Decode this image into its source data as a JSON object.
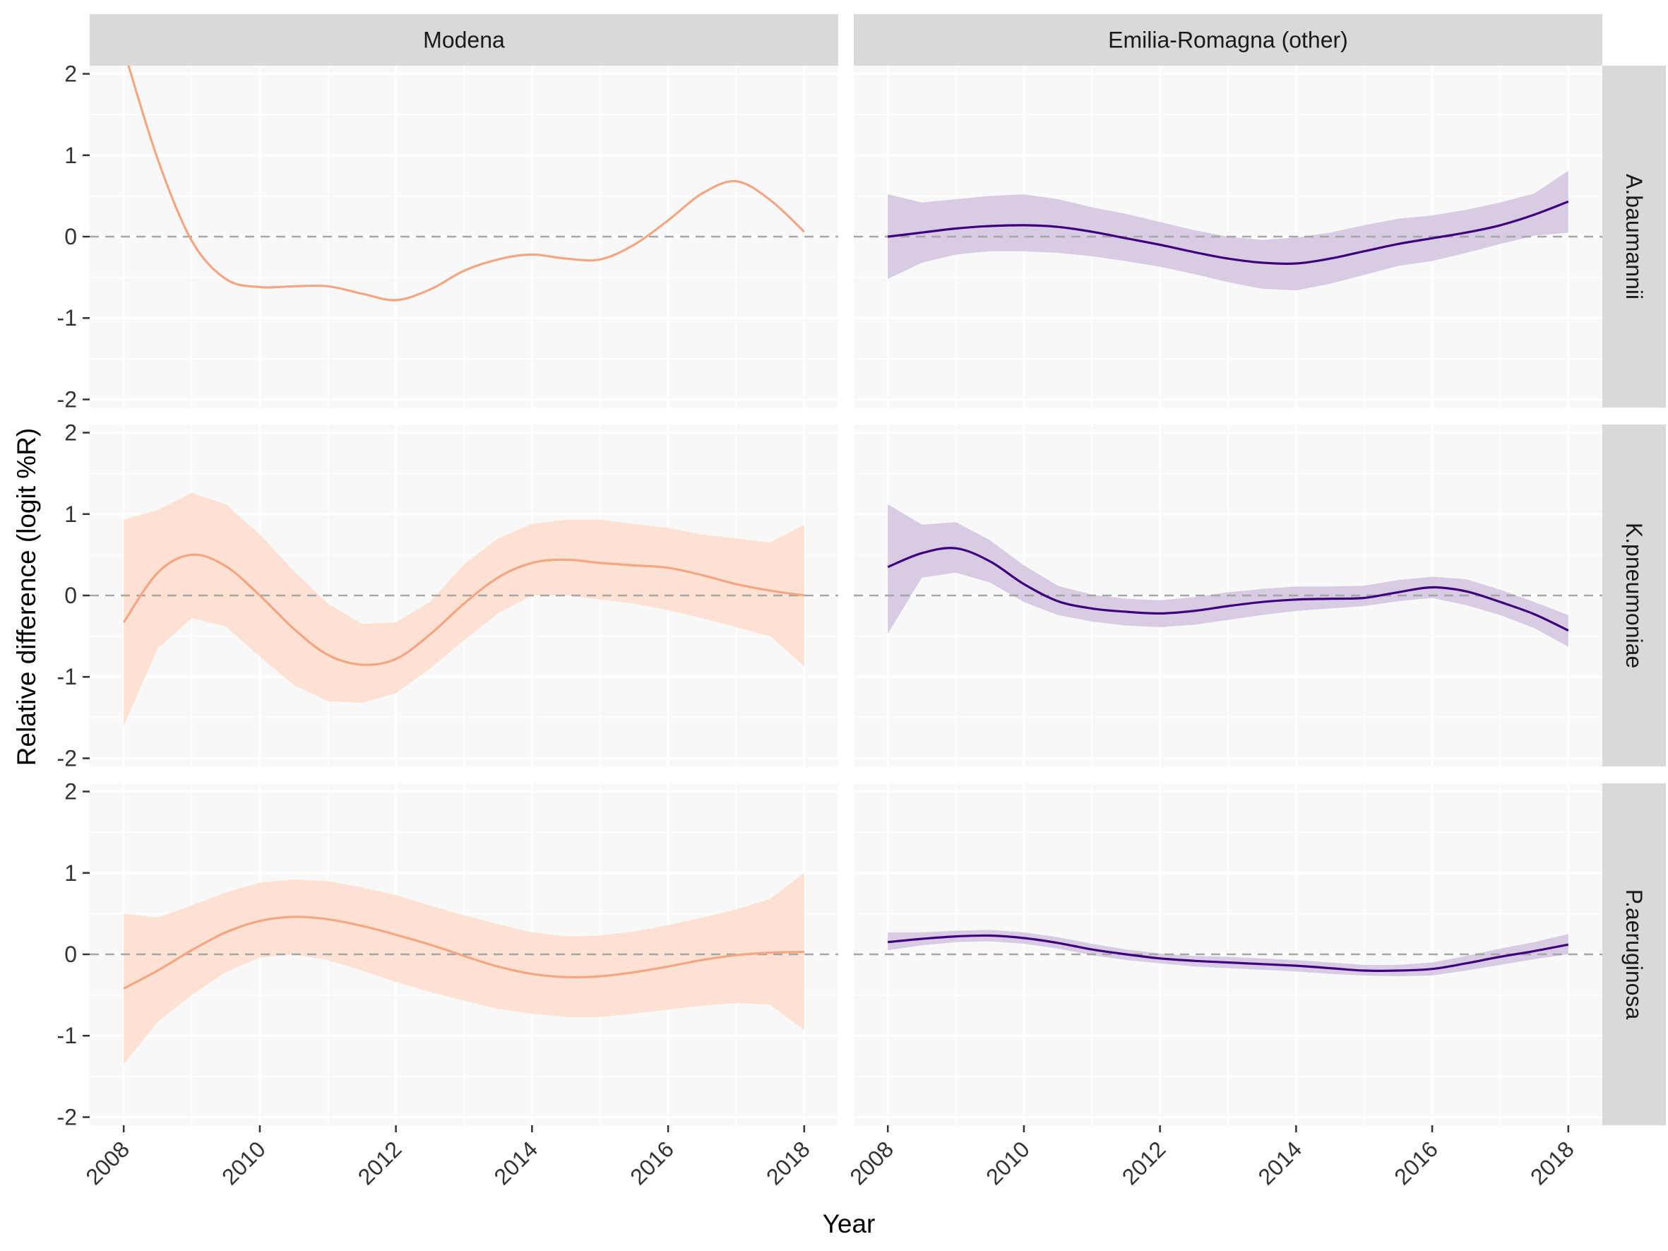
{
  "chart_data": {
    "type": "line",
    "layout": "facet-grid",
    "xlabel": "Year",
    "ylabel": "Relative difference (logit %R)",
    "xlim": [
      2007.5,
      2018.5
    ],
    "ylim": [
      -2.1,
      2.1
    ],
    "x_ticks": [
      2008,
      2010,
      2012,
      2014,
      2016,
      2018
    ],
    "y_ticks": [
      -2,
      -1,
      0,
      1,
      2
    ],
    "reference_line": 0,
    "columns": [
      "Modena",
      "Emilia-Romagna (other)"
    ],
    "rows": [
      "A.baumannii",
      "K.pneumoniae",
      "P.aeruginosa"
    ],
    "colors": {
      "Modena": {
        "line": "#F4A582",
        "band": "#FDE1D3"
      },
      "Emilia-Romagna (other)": {
        "line": "#3F007D",
        "band": "#D7CCE3"
      },
      "panel_bg": "#F8F8F8",
      "strip_bg": "#D9D9D9",
      "grid": "#FFFFFF",
      "ref_line": "#A6A6A6"
    },
    "panels": [
      {
        "column": "Modena",
        "row": "A.baumannii",
        "x": [
          2008,
          2008.5,
          2009,
          2009.5,
          2010,
          2010.5,
          2011,
          2011.5,
          2012,
          2012.5,
          2013,
          2013.5,
          2014,
          2014.5,
          2015,
          2015.5,
          2016,
          2016.5,
          2017,
          2017.5,
          2018
        ],
        "y": [
          2.3,
          0.95,
          -0.05,
          -0.52,
          -0.62,
          -0.61,
          -0.61,
          -0.7,
          -0.78,
          -0.65,
          -0.42,
          -0.28,
          -0.22,
          -0.27,
          -0.28,
          -0.1,
          0.2,
          0.53,
          0.68,
          0.45,
          0.06
        ],
        "lower": null,
        "upper": null
      },
      {
        "column": "Emilia-Romagna (other)",
        "row": "A.baumannii",
        "x": [
          2008,
          2008.5,
          2009,
          2009.5,
          2010,
          2010.5,
          2011,
          2011.5,
          2012,
          2012.5,
          2013,
          2013.5,
          2014,
          2014.5,
          2015,
          2015.5,
          2016,
          2016.5,
          2017,
          2017.5,
          2018
        ],
        "y": [
          0.0,
          0.05,
          0.1,
          0.13,
          0.14,
          0.12,
          0.06,
          -0.02,
          -0.1,
          -0.19,
          -0.27,
          -0.32,
          -0.33,
          -0.27,
          -0.18,
          -0.09,
          -0.02,
          0.05,
          0.14,
          0.27,
          0.43
        ],
        "lower": [
          -0.52,
          -0.32,
          -0.22,
          -0.18,
          -0.18,
          -0.2,
          -0.24,
          -0.3,
          -0.37,
          -0.46,
          -0.56,
          -0.64,
          -0.66,
          -0.58,
          -0.47,
          -0.36,
          -0.3,
          -0.2,
          -0.09,
          0.01,
          0.05
        ],
        "upper": [
          0.52,
          0.42,
          0.46,
          0.5,
          0.52,
          0.46,
          0.36,
          0.28,
          0.18,
          0.08,
          0.0,
          -0.04,
          -0.01,
          0.05,
          0.14,
          0.22,
          0.26,
          0.33,
          0.42,
          0.53,
          0.81
        ]
      },
      {
        "column": "Modena",
        "row": "K.pneumoniae",
        "x": [
          2008,
          2008.5,
          2009,
          2009.5,
          2010,
          2010.5,
          2011,
          2011.5,
          2012,
          2012.5,
          2013,
          2013.5,
          2014,
          2014.5,
          2015,
          2015.5,
          2016,
          2016.5,
          2017,
          2017.5,
          2018
        ],
        "y": [
          -0.33,
          0.28,
          0.5,
          0.36,
          0.0,
          -0.41,
          -0.73,
          -0.85,
          -0.78,
          -0.48,
          -0.1,
          0.22,
          0.4,
          0.44,
          0.4,
          0.37,
          0.34,
          0.25,
          0.14,
          0.06,
          0.0
        ],
        "lower": [
          -1.6,
          -0.65,
          -0.28,
          -0.38,
          -0.75,
          -1.1,
          -1.3,
          -1.32,
          -1.2,
          -0.9,
          -0.55,
          -0.22,
          0.0,
          0.0,
          -0.05,
          -0.1,
          -0.18,
          -0.28,
          -0.39,
          -0.5,
          -0.87
        ],
        "upper": [
          0.93,
          1.05,
          1.26,
          1.12,
          0.75,
          0.3,
          -0.1,
          -0.35,
          -0.33,
          -0.08,
          0.38,
          0.7,
          0.88,
          0.93,
          0.93,
          0.88,
          0.83,
          0.75,
          0.7,
          0.65,
          0.87
        ]
      },
      {
        "column": "Emilia-Romagna (other)",
        "row": "K.pneumoniae",
        "x": [
          2008,
          2008.5,
          2009,
          2009.5,
          2010,
          2010.5,
          2011,
          2011.5,
          2012,
          2012.5,
          2013,
          2013.5,
          2014,
          2014.5,
          2015,
          2015.5,
          2016,
          2016.5,
          2017,
          2017.5,
          2018
        ],
        "y": [
          0.35,
          0.52,
          0.58,
          0.42,
          0.14,
          -0.07,
          -0.16,
          -0.2,
          -0.22,
          -0.19,
          -0.13,
          -0.08,
          -0.05,
          -0.04,
          -0.03,
          0.04,
          0.1,
          0.05,
          -0.08,
          -0.23,
          -0.43
        ],
        "lower": [
          -0.47,
          0.22,
          0.28,
          0.16,
          -0.08,
          -0.24,
          -0.32,
          -0.37,
          -0.39,
          -0.36,
          -0.3,
          -0.24,
          -0.19,
          -0.16,
          -0.13,
          -0.07,
          -0.03,
          -0.12,
          -0.24,
          -0.4,
          -0.63
        ],
        "upper": [
          1.12,
          0.87,
          0.9,
          0.68,
          0.37,
          0.12,
          0.01,
          -0.04,
          -0.06,
          -0.02,
          0.04,
          0.08,
          0.11,
          0.11,
          0.12,
          0.19,
          0.23,
          0.2,
          0.07,
          -0.08,
          -0.24
        ]
      },
      {
        "column": "Modena",
        "row": "P.aeruginosa",
        "x": [
          2008,
          2008.5,
          2009,
          2009.5,
          2010,
          2010.5,
          2011,
          2011.5,
          2012,
          2012.5,
          2013,
          2013.5,
          2014,
          2014.5,
          2015,
          2015.5,
          2016,
          2016.5,
          2017,
          2017.5,
          2018
        ],
        "y": [
          -0.42,
          -0.2,
          0.05,
          0.27,
          0.41,
          0.46,
          0.43,
          0.35,
          0.24,
          0.12,
          -0.02,
          -0.15,
          -0.24,
          -0.28,
          -0.27,
          -0.22,
          -0.15,
          -0.07,
          -0.01,
          0.02,
          0.03
        ],
        "lower": [
          -1.35,
          -0.83,
          -0.5,
          -0.22,
          -0.04,
          0.0,
          -0.07,
          -0.2,
          -0.34,
          -0.46,
          -0.57,
          -0.67,
          -0.73,
          -0.77,
          -0.77,
          -0.73,
          -0.68,
          -0.63,
          -0.6,
          -0.62,
          -0.93
        ],
        "upper": [
          0.5,
          0.45,
          0.6,
          0.76,
          0.88,
          0.92,
          0.9,
          0.82,
          0.73,
          0.6,
          0.48,
          0.37,
          0.27,
          0.22,
          0.23,
          0.28,
          0.36,
          0.45,
          0.55,
          0.68,
          1.0
        ]
      },
      {
        "column": "Emilia-Romagna (other)",
        "row": "P.aeruginosa",
        "x": [
          2008,
          2008.5,
          2009,
          2009.5,
          2010,
          2010.5,
          2011,
          2011.5,
          2012,
          2012.5,
          2013,
          2013.5,
          2014,
          2014.5,
          2015,
          2015.5,
          2016,
          2016.5,
          2017,
          2017.5,
          2018
        ],
        "y": [
          0.15,
          0.19,
          0.22,
          0.23,
          0.2,
          0.14,
          0.06,
          0.0,
          -0.05,
          -0.08,
          -0.1,
          -0.12,
          -0.14,
          -0.17,
          -0.2,
          -0.2,
          -0.18,
          -0.11,
          -0.03,
          0.04,
          0.12
        ],
        "lower": [
          0.05,
          0.11,
          0.15,
          0.16,
          0.13,
          0.07,
          -0.01,
          -0.07,
          -0.11,
          -0.15,
          -0.17,
          -0.19,
          -0.21,
          -0.24,
          -0.26,
          -0.27,
          -0.26,
          -0.2,
          -0.13,
          -0.06,
          0.0
        ],
        "upper": [
          0.27,
          0.27,
          0.29,
          0.3,
          0.27,
          0.21,
          0.13,
          0.06,
          0.01,
          -0.02,
          -0.03,
          -0.05,
          -0.07,
          -0.1,
          -0.13,
          -0.13,
          -0.1,
          -0.02,
          0.07,
          0.15,
          0.25
        ]
      }
    ]
  }
}
